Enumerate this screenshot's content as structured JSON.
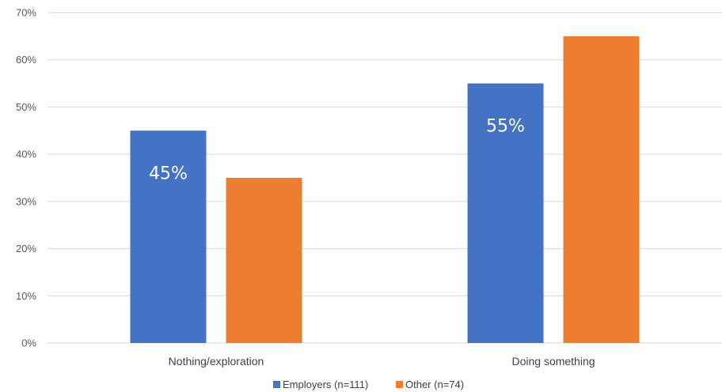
{
  "chart_data": {
    "type": "bar",
    "categories": [
      "Nothing/exploration",
      "Doing something"
    ],
    "series": [
      {
        "name": "Employers (n=111)",
        "values": [
          45,
          55
        ],
        "color": "#4472C4",
        "data_labels": [
          "45%",
          "55%"
        ]
      },
      {
        "name": "Other (n=74)",
        "values": [
          35,
          65
        ],
        "color": "#ED7D31",
        "data_labels": [
          null,
          null
        ]
      }
    ],
    "ylim": [
      0,
      70
    ],
    "yticks": [
      "0%",
      "10%",
      "20%",
      "30%",
      "40%",
      "50%",
      "60%",
      "70%"
    ],
    "ytick_values": [
      0,
      10,
      20,
      30,
      40,
      50,
      60,
      70
    ],
    "grid": true,
    "legend_position": "bottom",
    "title": "",
    "xlabel": "",
    "ylabel": ""
  }
}
